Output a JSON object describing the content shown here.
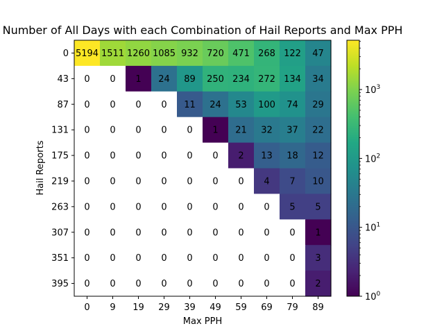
{
  "chart_data": {
    "type": "heatmap",
    "title": "Number of All Days with each Combination of Hail Reports and Max PPH",
    "xlabel": "Max PPH",
    "ylabel": "Hail Reports",
    "x_categories": [
      "0",
      "9",
      "19",
      "29",
      "39",
      "49",
      "59",
      "69",
      "79",
      "89"
    ],
    "y_categories": [
      "0",
      "43",
      "87",
      "131",
      "175",
      "219",
      "263",
      "307",
      "351",
      "395"
    ],
    "values": [
      [
        5194,
        1511,
        1260,
        1085,
        932,
        720,
        471,
        268,
        122,
        47
      ],
      [
        0,
        0,
        1,
        24,
        89,
        250,
        234,
        272,
        134,
        34
      ],
      [
        0,
        0,
        0,
        0,
        11,
        24,
        53,
        100,
        74,
        29
      ],
      [
        0,
        0,
        0,
        0,
        0,
        1,
        21,
        32,
        37,
        22
      ],
      [
        0,
        0,
        0,
        0,
        0,
        0,
        2,
        13,
        18,
        12
      ],
      [
        0,
        0,
        0,
        0,
        0,
        0,
        0,
        4,
        7,
        10
      ],
      [
        0,
        0,
        0,
        0,
        0,
        0,
        0,
        0,
        5,
        5
      ],
      [
        0,
        0,
        0,
        0,
        0,
        0,
        0,
        0,
        0,
        1
      ],
      [
        0,
        0,
        0,
        0,
        0,
        0,
        0,
        0,
        0,
        3
      ],
      [
        0,
        0,
        0,
        0,
        0,
        0,
        0,
        0,
        0,
        2
      ]
    ],
    "colorbar": {
      "scale": "log",
      "colormap": "viridis",
      "range": [
        1,
        5194
      ],
      "tick_values": [
        1,
        10,
        100,
        1000
      ],
      "tick_labels": [
        "10^0",
        "10^1",
        "10^2",
        "10^3"
      ]
    },
    "zero_cells_color": "#ffffff",
    "grid": false
  }
}
